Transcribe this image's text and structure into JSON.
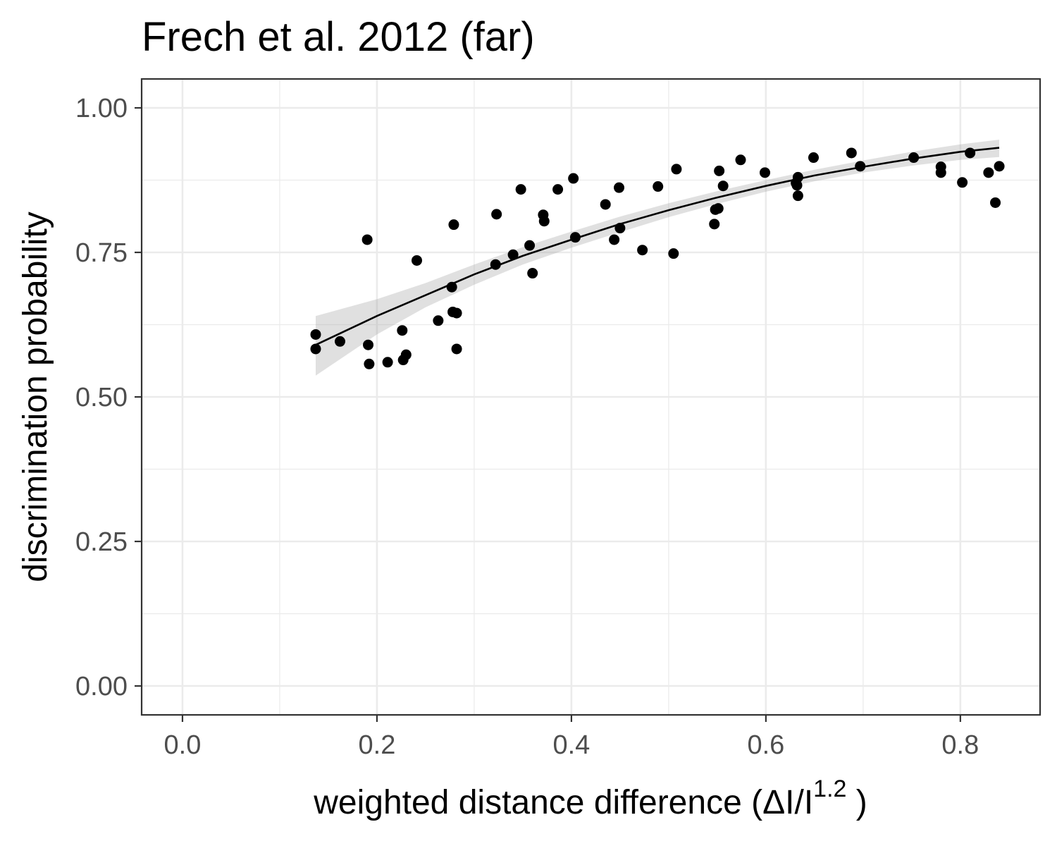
{
  "chart_data": {
    "type": "scatter",
    "title": "Frech et al. 2012 (far)",
    "xlabel": {
      "main": "weighted  distance  difference (ΔI/I",
      "superscript": "1.2",
      "closing": " )"
    },
    "ylabel": "discrimination probability",
    "xlim": [
      -0.042,
      0.882
    ],
    "ylim": [
      -0.05,
      1.05
    ],
    "x_ticks": [
      0.0,
      0.2,
      0.4,
      0.6,
      0.8
    ],
    "x_tick_labels": [
      "0.0",
      "0.2",
      "0.4",
      "0.6",
      "0.8"
    ],
    "y_ticks": [
      0.0,
      0.25,
      0.5,
      0.75,
      1.0
    ],
    "y_tick_labels": [
      "0.00",
      "0.25",
      "0.50",
      "0.75",
      "1.00"
    ],
    "grid": true,
    "colors": {
      "points": "#000000",
      "fit_line": "#000000",
      "confidence_band": "#999999",
      "panel_border": "#333333",
      "gridlines": "#ebebeb"
    },
    "points": [
      {
        "x": 0.137,
        "y": 0.608
      },
      {
        "x": 0.137,
        "y": 0.583
      },
      {
        "x": 0.162,
        "y": 0.596
      },
      {
        "x": 0.19,
        "y": 0.772
      },
      {
        "x": 0.191,
        "y": 0.59
      },
      {
        "x": 0.192,
        "y": 0.557
      },
      {
        "x": 0.211,
        "y": 0.56
      },
      {
        "x": 0.226,
        "y": 0.615
      },
      {
        "x": 0.227,
        "y": 0.564
      },
      {
        "x": 0.23,
        "y": 0.573
      },
      {
        "x": 0.241,
        "y": 0.736
      },
      {
        "x": 0.263,
        "y": 0.632
      },
      {
        "x": 0.277,
        "y": 0.69
      },
      {
        "x": 0.278,
        "y": 0.647
      },
      {
        "x": 0.279,
        "y": 0.798
      },
      {
        "x": 0.282,
        "y": 0.645
      },
      {
        "x": 0.282,
        "y": 0.583
      },
      {
        "x": 0.322,
        "y": 0.729
      },
      {
        "x": 0.323,
        "y": 0.816
      },
      {
        "x": 0.34,
        "y": 0.746
      },
      {
        "x": 0.348,
        "y": 0.859
      },
      {
        "x": 0.357,
        "y": 0.762
      },
      {
        "x": 0.36,
        "y": 0.714
      },
      {
        "x": 0.371,
        "y": 0.815
      },
      {
        "x": 0.372,
        "y": 0.804
      },
      {
        "x": 0.386,
        "y": 0.859
      },
      {
        "x": 0.402,
        "y": 0.878
      },
      {
        "x": 0.404,
        "y": 0.776
      },
      {
        "x": 0.435,
        "y": 0.833
      },
      {
        "x": 0.444,
        "y": 0.772
      },
      {
        "x": 0.449,
        "y": 0.862
      },
      {
        "x": 0.45,
        "y": 0.792
      },
      {
        "x": 0.473,
        "y": 0.754
      },
      {
        "x": 0.489,
        "y": 0.864
      },
      {
        "x": 0.505,
        "y": 0.748
      },
      {
        "x": 0.508,
        "y": 0.894
      },
      {
        "x": 0.547,
        "y": 0.799
      },
      {
        "x": 0.548,
        "y": 0.824
      },
      {
        "x": 0.551,
        "y": 0.826
      },
      {
        "x": 0.552,
        "y": 0.891
      },
      {
        "x": 0.556,
        "y": 0.865
      },
      {
        "x": 0.574,
        "y": 0.91
      },
      {
        "x": 0.599,
        "y": 0.888
      },
      {
        "x": 0.631,
        "y": 0.87
      },
      {
        "x": 0.632,
        "y": 0.866
      },
      {
        "x": 0.633,
        "y": 0.88
      },
      {
        "x": 0.633,
        "y": 0.848
      },
      {
        "x": 0.649,
        "y": 0.914
      },
      {
        "x": 0.688,
        "y": 0.922
      },
      {
        "x": 0.697,
        "y": 0.899
      },
      {
        "x": 0.752,
        "y": 0.914
      },
      {
        "x": 0.78,
        "y": 0.898
      },
      {
        "x": 0.78,
        "y": 0.888
      },
      {
        "x": 0.802,
        "y": 0.871
      },
      {
        "x": 0.81,
        "y": 0.922
      },
      {
        "x": 0.829,
        "y": 0.888
      },
      {
        "x": 0.836,
        "y": 0.836
      },
      {
        "x": 0.84,
        "y": 0.899
      }
    ],
    "fit": {
      "x": [
        0.137,
        0.2,
        0.25,
        0.3,
        0.35,
        0.4,
        0.45,
        0.5,
        0.55,
        0.6,
        0.65,
        0.7,
        0.75,
        0.8,
        0.84
      ],
      "y": [
        0.59,
        0.64,
        0.676,
        0.712,
        0.744,
        0.772,
        0.799,
        0.823,
        0.845,
        0.865,
        0.883,
        0.898,
        0.912,
        0.924,
        0.931
      ],
      "lower": [
        0.537,
        0.608,
        0.655,
        0.694,
        0.729,
        0.758,
        0.785,
        0.811,
        0.834,
        0.855,
        0.873,
        0.888,
        0.9,
        0.91,
        0.915
      ],
      "upper": [
        0.64,
        0.669,
        0.697,
        0.729,
        0.759,
        0.786,
        0.812,
        0.835,
        0.856,
        0.875,
        0.893,
        0.909,
        0.924,
        0.937,
        0.945
      ]
    }
  }
}
